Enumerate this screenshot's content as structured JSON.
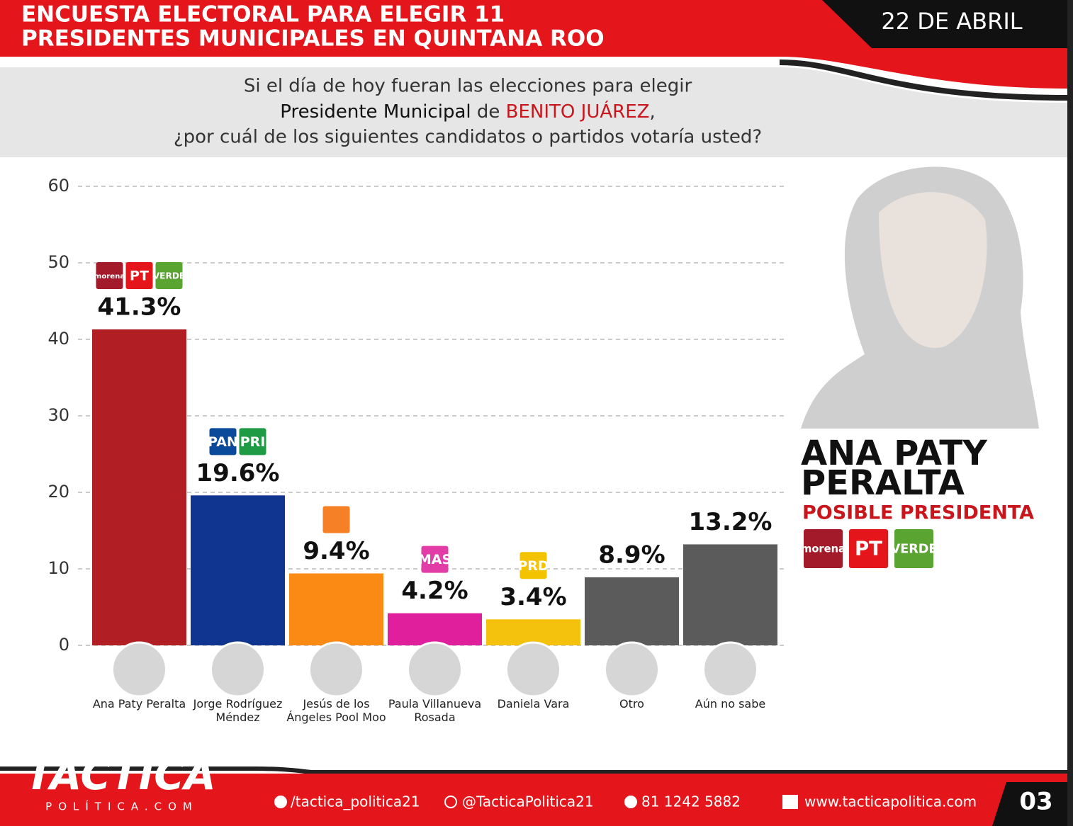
{
  "header": {
    "title": [
      "ENCUESTA ELECTORAL PARA ELEGIR 11",
      "PRESIDENTES MUNICIPALES EN QUINTANA ROO"
    ],
    "date": "22 DE ABRIL"
  },
  "question": {
    "line1": "Si el día de hoy fueran las elecciones para elegir",
    "line2": [
      "Presidente Municipal",
      " de ",
      "BENITO JUÁREZ",
      ","
    ],
    "line3": "¿por cuál de los siguientes candidatos o partidos votaría usted?"
  },
  "chart_data": {
    "type": "bar",
    "categories": [
      "Ana Paty Peralta",
      "Jorge Rodríguez Méndez",
      "Jesús de los Ángeles Pool Moo",
      "Paula Villanueva Rosada",
      "Daniela Vara",
      "Otro",
      "Aún no sabe"
    ],
    "values": [
      41.3,
      19.6,
      9.4,
      4.2,
      3.4,
      8.9,
      13.2
    ],
    "value_labels": [
      "41.3%",
      "19.6%",
      "9.4%",
      "4.2%",
      "3.4%",
      "8.9%",
      "13.2%"
    ],
    "colors": [
      "#b11f24",
      "#0f3591",
      "#fb8a14",
      "#df1f9b",
      "#f4c20d",
      "#5b5b5b",
      "#5b5b5b"
    ],
    "logos": [
      [
        {
          "text": "morena",
          "color": "#a31b2a"
        },
        {
          "text": "PT",
          "color": "#e4161b"
        },
        {
          "text": "VERDE",
          "color": "#5aa431"
        }
      ],
      [
        {
          "text": "PAN",
          "color": "#0b4a9a"
        },
        {
          "text": "PRI",
          "color": "#1f9a45"
        }
      ],
      [
        {
          "color": "#f58025"
        }
      ],
      [
        {
          "text": "MAS",
          "color": "#e23ca6"
        }
      ],
      [
        {
          "text": "PRD",
          "color": "#f3c300"
        }
      ],
      [],
      []
    ],
    "ylim": [
      0,
      60
    ],
    "yticks": [
      0,
      10,
      20,
      30,
      40,
      50,
      60
    ],
    "grid": true
  },
  "right_panel": {
    "name": [
      "ANA PATY",
      "PERALTA"
    ],
    "role": "POSIBLE PRESIDENTA",
    "parties": [
      {
        "text": "morena",
        "color": "#a31b2a"
      },
      {
        "text": "PT",
        "color": "#e4161b"
      },
      {
        "text": "VERDE",
        "color": "#5aa431"
      }
    ]
  },
  "footer": {
    "brand": "TACTICA",
    "brand_sub": "POLÍTICA.COM",
    "facebook": "/tactica_politica21",
    "instagram": "@TacticaPolitica21",
    "phone": "81 1242 5882",
    "web": "www.tacticapolitica.com",
    "page": "03"
  }
}
